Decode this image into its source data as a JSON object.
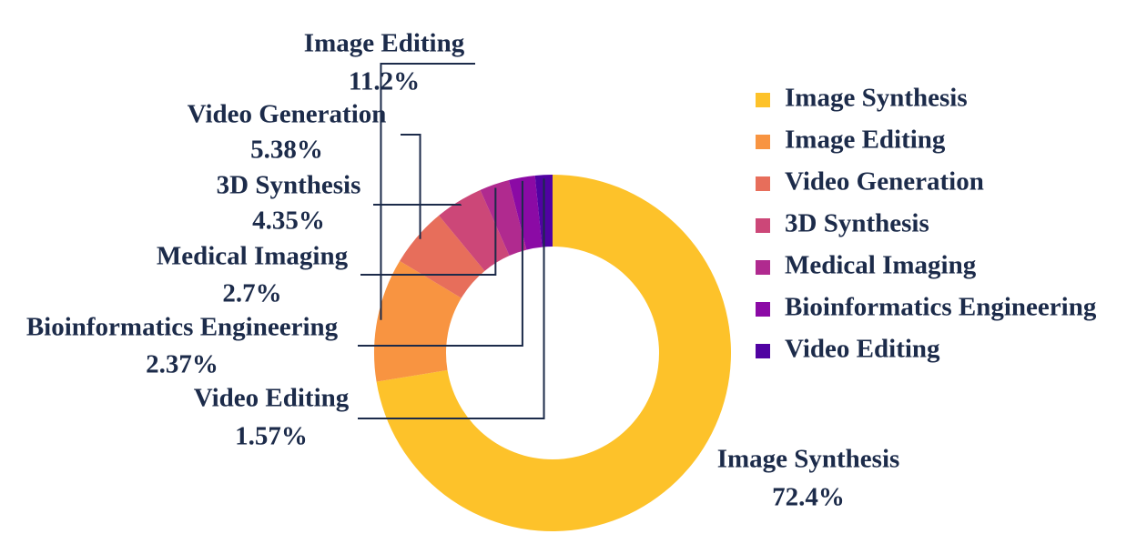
{
  "chart_data": {
    "type": "donut",
    "categories": [
      "Image Synthesis",
      "Image Editing",
      "Video Generation",
      "3D Synthesis",
      "Medical Imaging",
      "Bioinformatics Engineering",
      "Video Editing"
    ],
    "values": [
      72.4,
      11.2,
      5.38,
      4.35,
      2.7,
      2.37,
      1.57
    ],
    "value_labels": [
      "72.4%",
      "11.2%",
      "5.38%",
      "4.35%",
      "2.7%",
      "2.37%",
      "1.57%"
    ],
    "colors": [
      "#fdc22a",
      "#f89441",
      "#e76e5b",
      "#cc4778",
      "#b02a8f",
      "#8b0aa5",
      "#5002a2"
    ],
    "legend": "right"
  }
}
